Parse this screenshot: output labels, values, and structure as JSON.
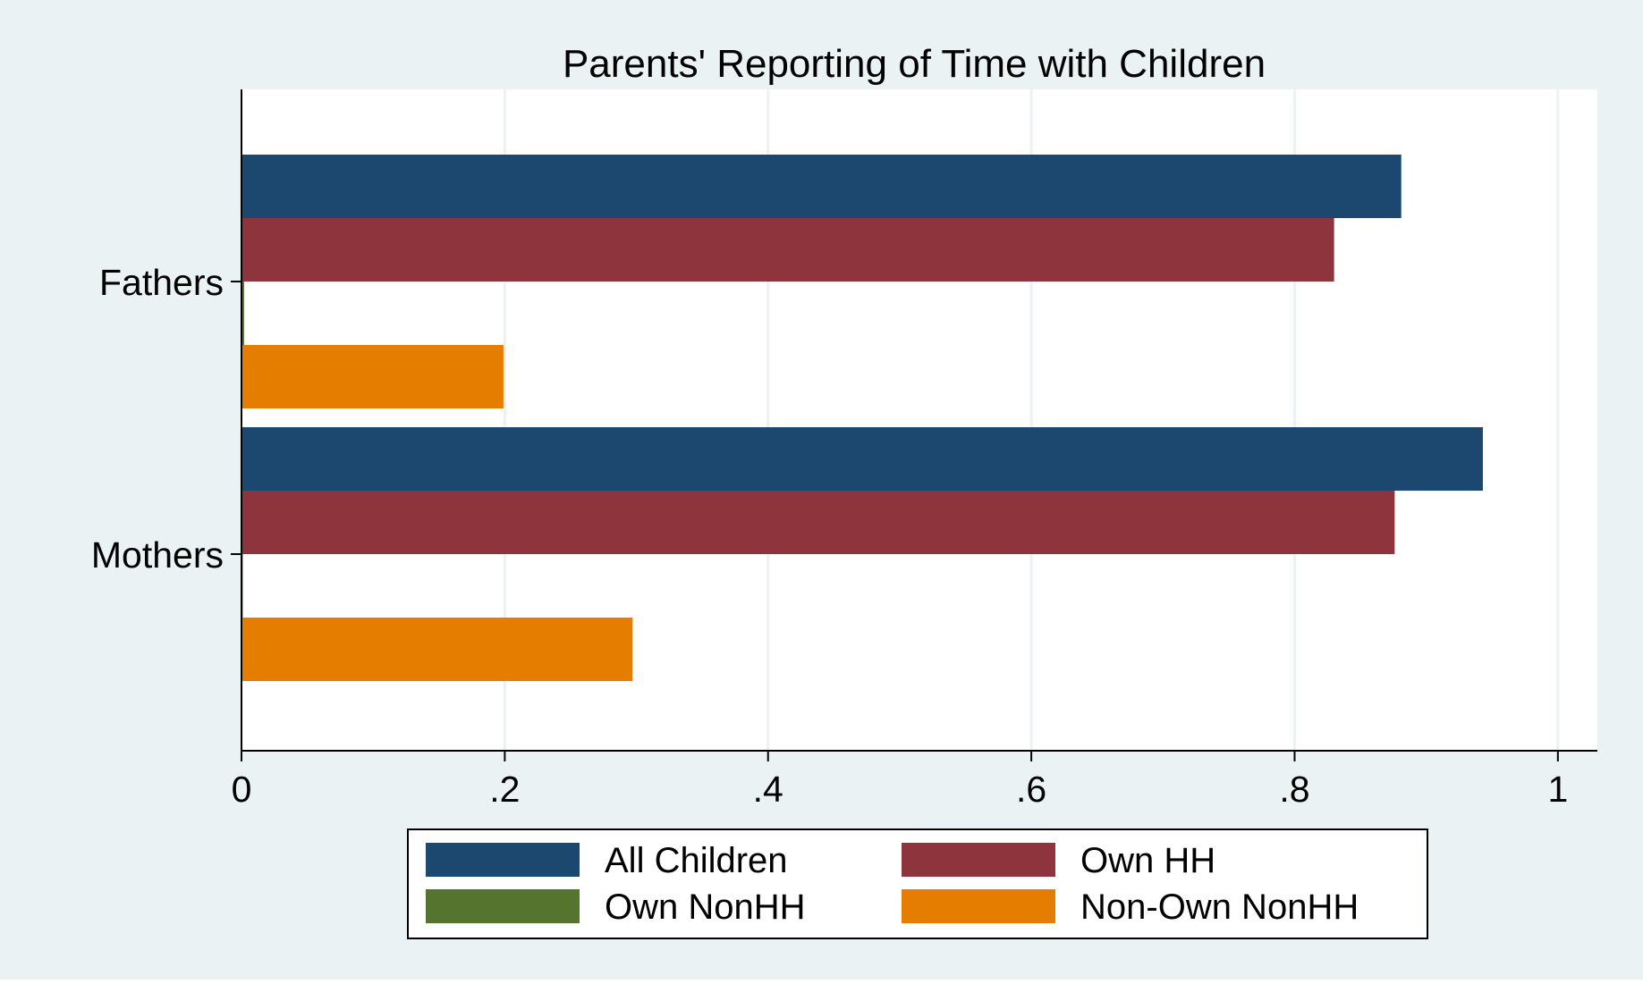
{
  "chart_data": {
    "type": "bar",
    "orientation": "horizontal",
    "title": "Parents' Reporting of Time with Children",
    "xlabel": "",
    "ylabel": "",
    "categories": [
      "Fathers",
      "Mothers"
    ],
    "series": [
      {
        "name": "All Children",
        "color": "#1c4870",
        "values": [
          0.881,
          0.943
        ]
      },
      {
        "name": "Own HH",
        "color": "#8e343d",
        "values": [
          0.83,
          0.876
        ]
      },
      {
        "name": "Own NonHH",
        "color": "#55752f",
        "values": [
          0.002,
          0.001
        ]
      },
      {
        "name": "Non-Own NonHH",
        "color": "#e57e00",
        "values": [
          0.199,
          0.297
        ]
      }
    ],
    "xlim": [
      0,
      1.03
    ],
    "xticks": [
      0,
      0.2,
      0.4,
      0.6,
      0.8,
      1
    ],
    "xtick_labels": [
      "0",
      ".2",
      ".4",
      ".6",
      ".8",
      "1"
    ],
    "grid": true,
    "legend_position": "bottom",
    "background_color": "#eaf2f3",
    "plot_background": "#ffffff",
    "gridline_color": "#eaf2f3"
  }
}
